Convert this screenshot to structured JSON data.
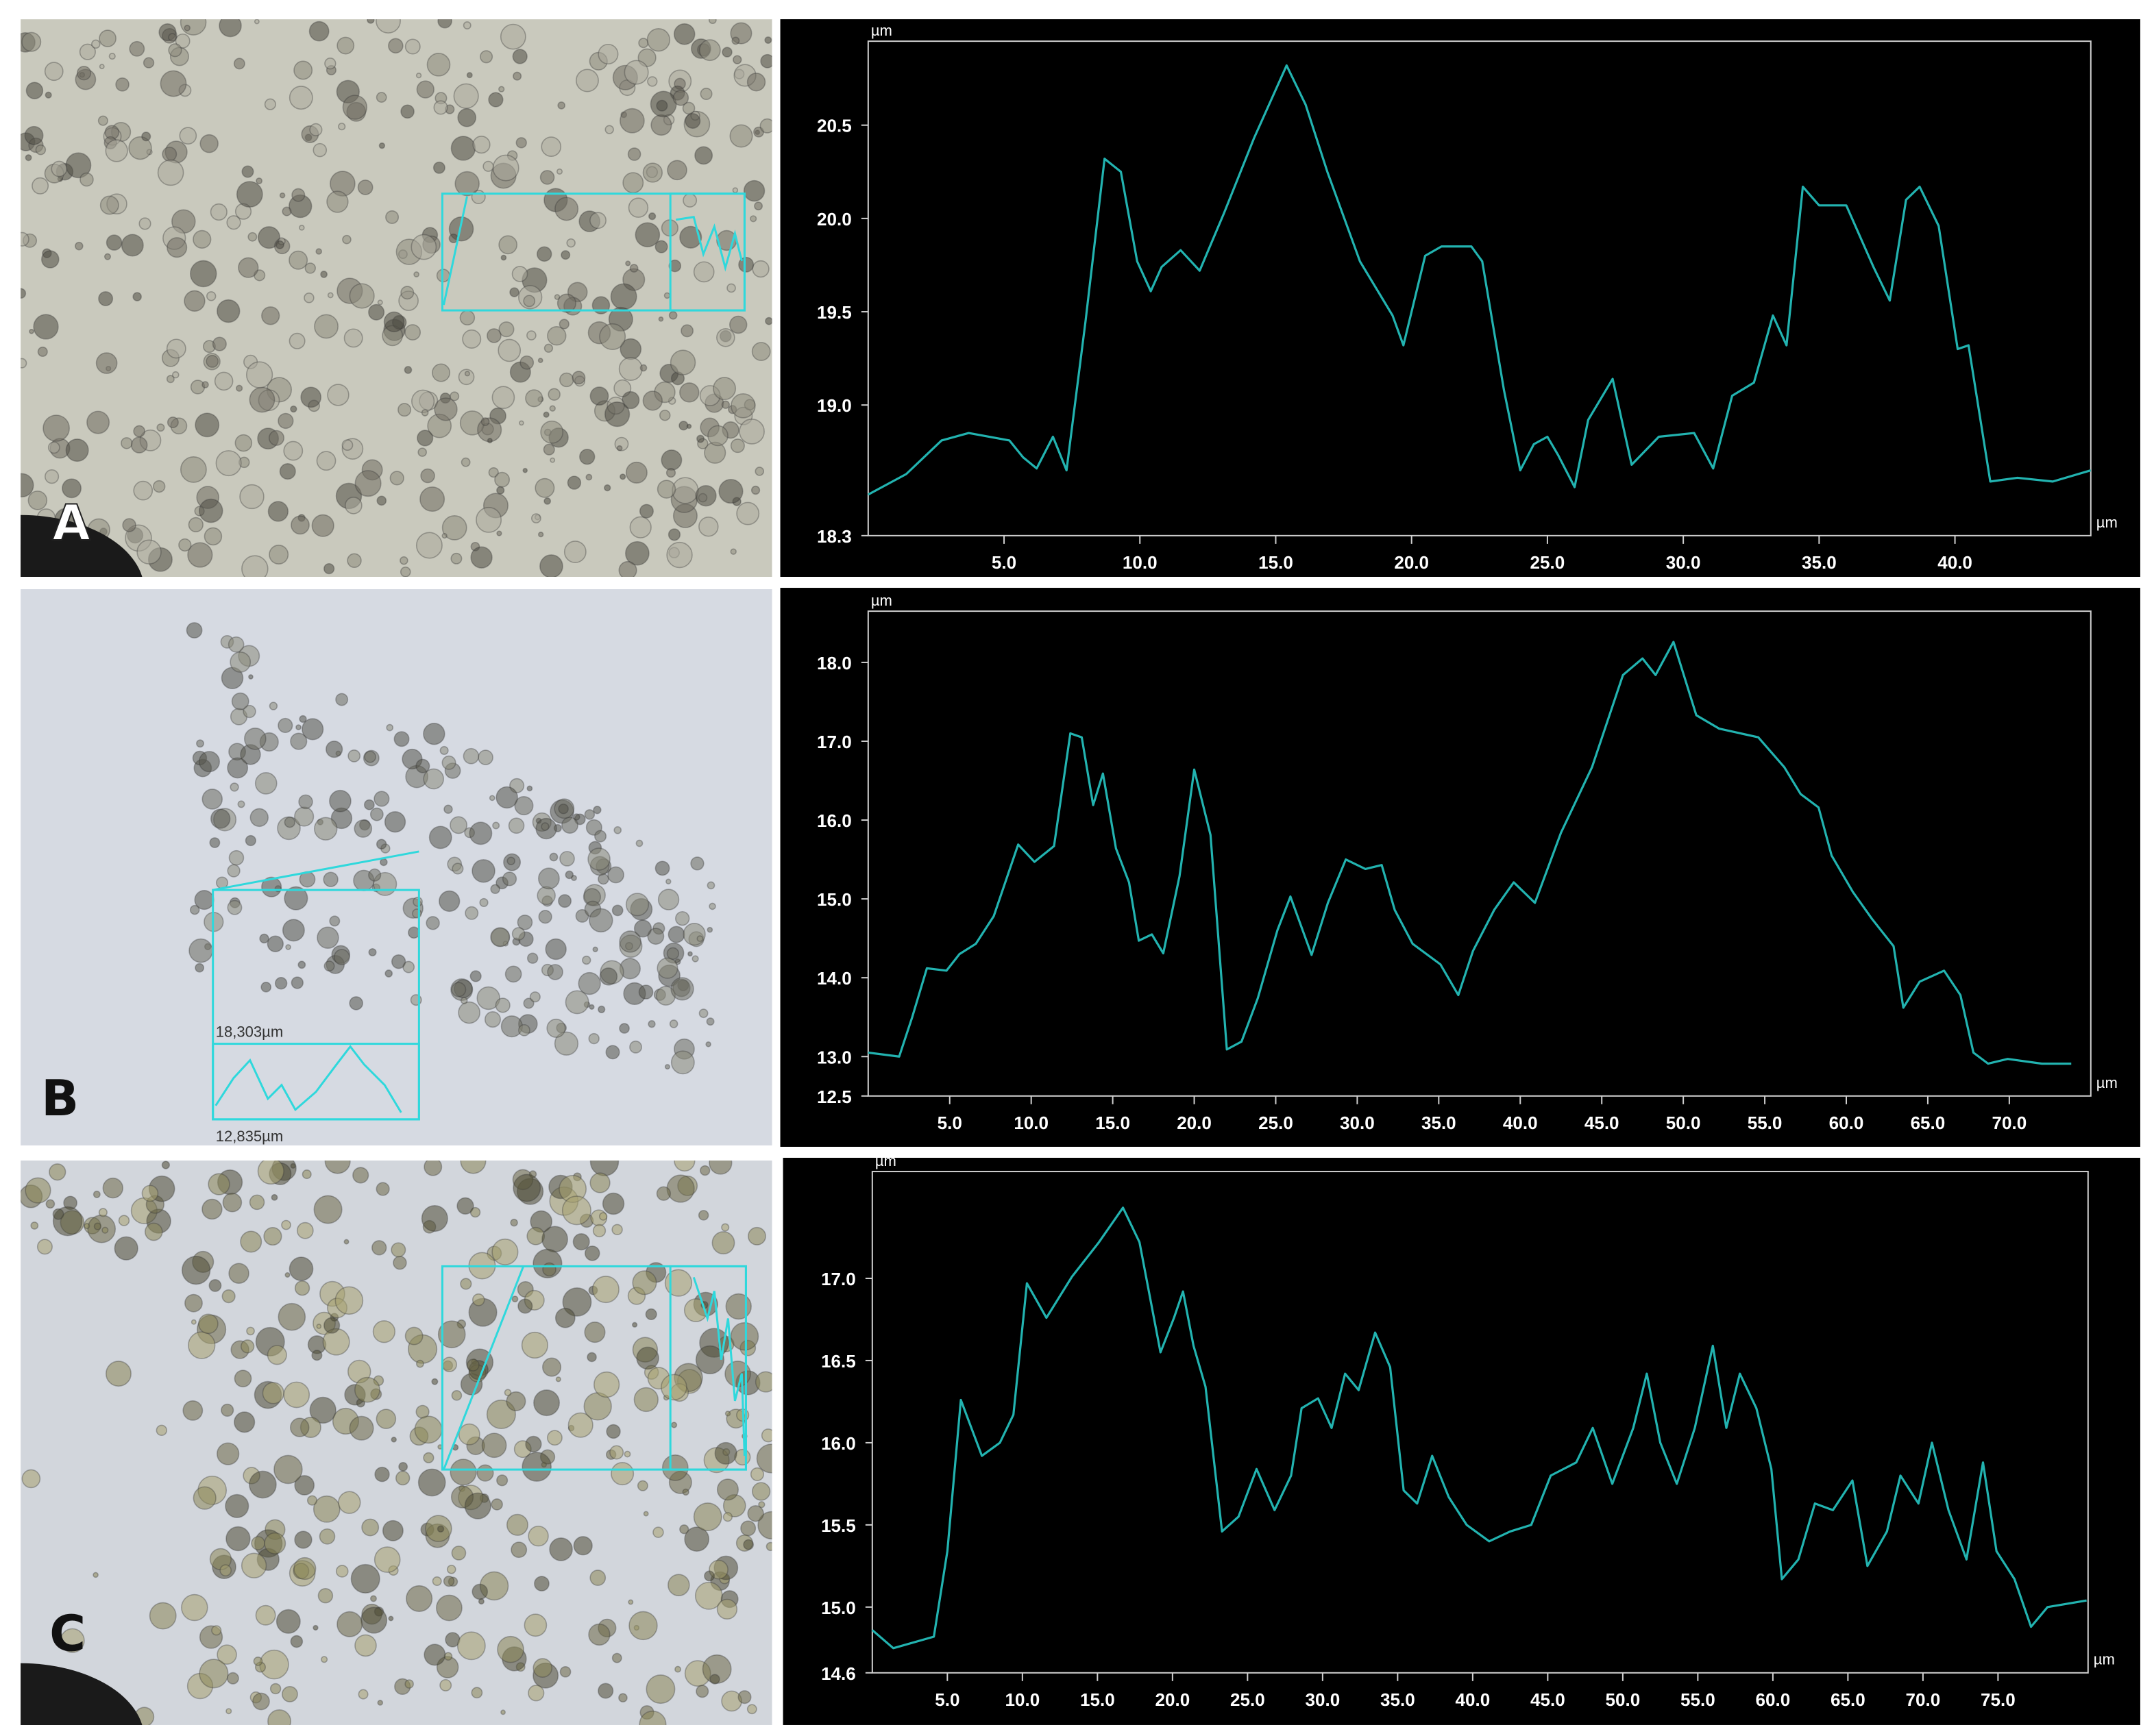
{
  "panels": [
    {
      "label": "A"
    },
    {
      "label": "B",
      "annotations": [
        "18,303µm",
        "12,835µm"
      ]
    },
    {
      "label": "C"
    }
  ],
  "chart_data": [
    {
      "type": "line",
      "y_label": "µm",
      "x_label": "µm",
      "color": "#22b3b0",
      "xlim": [
        0,
        45
      ],
      "ylim": [
        18.3,
        20.95
      ],
      "xticks": [
        {
          "value": 5,
          "label": "5.0"
        },
        {
          "value": 10,
          "label": "10.0"
        },
        {
          "value": 15,
          "label": "15.0"
        },
        {
          "value": 20,
          "label": "20.0"
        },
        {
          "value": 25,
          "label": "25.0"
        },
        {
          "value": 30,
          "label": "30.0"
        },
        {
          "value": 35,
          "label": "35.0"
        },
        {
          "value": 40,
          "label": "40.0"
        }
      ],
      "yticks": [
        20.5,
        {
          "value": 20,
          "label": "20.0"
        },
        19.5,
        {
          "value": 19,
          "label": "19.0"
        },
        18.3
      ],
      "x": [
        0,
        1.4,
        2.7,
        3.7,
        5.2,
        5.7,
        6.2,
        6.8,
        7.3,
        8.0,
        8.7,
        9.3,
        9.9,
        10.4,
        10.8,
        11.5,
        12.2,
        13.1,
        14.2,
        15.4,
        16.1,
        16.9,
        18.1,
        19.3,
        19.7,
        20.5,
        21.1,
        22.2,
        22.6,
        23.4,
        24.0,
        24.5,
        25.0,
        25.4,
        26.0,
        26.5,
        27.4,
        28.1,
        29.1,
        30.4,
        31.1,
        31.8,
        32.6,
        33.3,
        33.8,
        34.4,
        35.0,
        36.0,
        37.0,
        37.6,
        38.2,
        38.7,
        39.4,
        40.1,
        40.5,
        41.3,
        42.3,
        43.6,
        45.0
      ],
      "values": [
        18.52,
        18.63,
        18.81,
        18.85,
        18.81,
        18.72,
        18.66,
        18.83,
        18.65,
        19.45,
        20.32,
        20.25,
        19.77,
        19.61,
        19.74,
        19.83,
        19.72,
        20.03,
        20.43,
        20.82,
        20.61,
        20.25,
        19.77,
        19.48,
        19.32,
        19.8,
        19.85,
        19.85,
        19.77,
        19.08,
        18.65,
        18.79,
        18.83,
        18.73,
        18.56,
        18.92,
        19.14,
        18.68,
        18.83,
        18.85,
        18.66,
        19.05,
        19.12,
        19.48,
        19.32,
        20.17,
        20.07,
        20.07,
        19.74,
        19.56,
        20.1,
        20.17,
        19.96,
        19.3,
        19.32,
        18.59,
        18.61,
        18.59,
        18.65
      ]
    },
    {
      "type": "line",
      "y_label": "µm",
      "x_label": "µm",
      "color": "#22b3b0",
      "xlim": [
        0,
        75
      ],
      "ylim": [
        12.5,
        18.65
      ],
      "xticks": [
        {
          "value": 5,
          "label": "5.0"
        },
        {
          "value": 10,
          "label": "10.0"
        },
        {
          "value": 15,
          "label": "15.0"
        },
        {
          "value": 20,
          "label": "20.0"
        },
        {
          "value": 25,
          "label": "25.0"
        },
        {
          "value": 30,
          "label": "30.0"
        },
        {
          "value": 35,
          "label": "35.0"
        },
        {
          "value": 40,
          "label": "40.0"
        },
        {
          "value": 45,
          "label": "45.0"
        },
        {
          "value": 50,
          "label": "50.0"
        },
        {
          "value": 55,
          "label": "55.0"
        },
        {
          "value": 60,
          "label": "60.0"
        },
        {
          "value": 65,
          "label": "65.0"
        },
        {
          "value": 70,
          "label": "70.0"
        }
      ],
      "yticks": [
        {
          "value": 18,
          "label": "18.0"
        },
        {
          "value": 17,
          "label": "17.0"
        },
        {
          "value": 16,
          "label": "16.0"
        },
        {
          "value": 15,
          "label": "15.0"
        },
        {
          "value": 14,
          "label": "14.0"
        },
        {
          "value": 13,
          "label": "13.0"
        },
        12.5
      ],
      "x": [
        0,
        1.9,
        2.7,
        3.6,
        4.8,
        5.6,
        6.6,
        7.7,
        9.2,
        10.2,
        11.4,
        12.4,
        13.1,
        13.8,
        14.4,
        15.2,
        16.0,
        16.6,
        17.4,
        18.1,
        19.1,
        20.0,
        21.0,
        22.0,
        22.9,
        23.9,
        25.1,
        25.9,
        27.2,
        28.2,
        29.3,
        30.5,
        31.5,
        32.3,
        33.4,
        35.1,
        36.2,
        37.1,
        38.4,
        39.6,
        40.9,
        42.5,
        44.4,
        46.3,
        47.5,
        48.3,
        49.4,
        50.8,
        52.2,
        54.6,
        56.2,
        57.2,
        58.3,
        59.1,
        60.4,
        61.6,
        62.9,
        63.5,
        64.5,
        66.0,
        67.0,
        67.8,
        68.7,
        69.9,
        72.0,
        73.8
      ],
      "values": [
        13.05,
        13.0,
        13.5,
        14.12,
        14.09,
        14.3,
        14.43,
        14.78,
        15.69,
        15.47,
        15.67,
        17.1,
        17.05,
        16.19,
        16.59,
        15.64,
        15.21,
        14.47,
        14.55,
        14.31,
        15.29,
        16.64,
        15.81,
        13.09,
        13.19,
        13.74,
        14.6,
        15.03,
        14.29,
        14.95,
        15.5,
        15.38,
        15.43,
        14.86,
        14.43,
        14.17,
        13.78,
        14.34,
        14.86,
        15.21,
        14.95,
        15.84,
        16.67,
        17.84,
        18.05,
        17.84,
        18.26,
        17.33,
        17.16,
        17.05,
        16.67,
        16.33,
        16.16,
        15.55,
        15.09,
        14.74,
        14.4,
        13.62,
        13.95,
        14.09,
        13.78,
        13.05,
        12.91,
        12.97,
        12.91,
        12.91
      ]
    },
    {
      "type": "line",
      "y_label": "µm",
      "x_label": "µm",
      "color": "#22b3b0",
      "xlim": [
        0,
        81
      ],
      "ylim": [
        14.6,
        17.65
      ],
      "xticks": [
        {
          "value": 5,
          "label": "5.0"
        },
        {
          "value": 10,
          "label": "10.0"
        },
        {
          "value": 15,
          "label": "15.0"
        },
        {
          "value": 20,
          "label": "20.0"
        },
        {
          "value": 25,
          "label": "25.0"
        },
        {
          "value": 30,
          "label": "30.0"
        },
        {
          "value": 35,
          "label": "35.0"
        },
        {
          "value": 40,
          "label": "40.0"
        },
        {
          "value": 45,
          "label": "45.0"
        },
        {
          "value": 50,
          "label": "50.0"
        },
        {
          "value": 55,
          "label": "55.0"
        },
        {
          "value": 60,
          "label": "60.0"
        },
        {
          "value": 65,
          "label": "65.0"
        },
        {
          "value": 70,
          "label": "70.0"
        },
        {
          "value": 75,
          "label": "75.0"
        }
      ],
      "yticks": [
        {
          "value": 17,
          "label": "17.0"
        },
        16.5,
        {
          "value": 16,
          "label": "16.0"
        },
        15.5,
        {
          "value": 15,
          "label": "15.0"
        },
        14.6
      ],
      "x": [
        0,
        1.4,
        4.1,
        5.0,
        5.9,
        7.3,
        8.5,
        9.4,
        10.3,
        11.6,
        13.3,
        15.1,
        16.7,
        17.8,
        19.2,
        20.1,
        20.7,
        21.4,
        22.2,
        23.3,
        24.4,
        25.6,
        26.8,
        27.9,
        28.6,
        29.7,
        30.6,
        31.5,
        32.4,
        33.5,
        34.5,
        35.4,
        36.3,
        37.3,
        38.4,
        39.6,
        41.1,
        42.5,
        43.9,
        45.2,
        46.9,
        48.0,
        49.3,
        50.7,
        51.6,
        52.5,
        53.6,
        54.8,
        56.0,
        56.9,
        57.8,
        58.9,
        59.9,
        60.6,
        61.7,
        62.8,
        64.0,
        65.3,
        66.3,
        67.6,
        68.5,
        69.7,
        70.6,
        71.7,
        72.9,
        74.0,
        74.9,
        76.1,
        77.2,
        78.3,
        80.9
      ],
      "values": [
        14.86,
        14.75,
        14.82,
        15.34,
        16.26,
        15.92,
        16.0,
        16.17,
        16.97,
        16.76,
        17.01,
        17.22,
        17.43,
        17.22,
        16.55,
        16.76,
        16.92,
        16.59,
        16.34,
        15.46,
        15.55,
        15.84,
        15.59,
        15.8,
        16.21,
        16.27,
        16.09,
        16.42,
        16.32,
        16.67,
        16.46,
        15.71,
        15.63,
        15.92,
        15.67,
        15.5,
        15.4,
        15.46,
        15.5,
        15.8,
        15.88,
        16.09,
        15.75,
        16.09,
        16.42,
        16.0,
        15.75,
        16.09,
        16.59,
        16.09,
        16.42,
        16.21,
        15.84,
        15.17,
        15.29,
        15.63,
        15.59,
        15.77,
        15.25,
        15.46,
        15.8,
        15.63,
        16.0,
        15.59,
        15.29,
        15.88,
        15.34,
        15.17,
        14.88,
        15.0,
        15.04
      ]
    }
  ]
}
